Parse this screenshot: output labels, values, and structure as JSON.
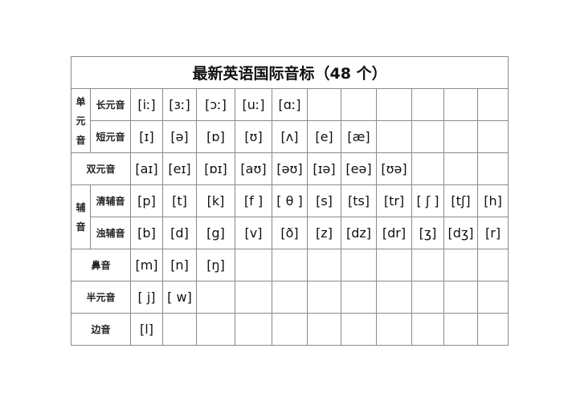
{
  "title": "最新英语国际音标（48 个）",
  "groups": {
    "monophthong": "单元音",
    "consonant": "辅音"
  },
  "rows": [
    {
      "label": "长元音",
      "group": "monophthong",
      "symbols": [
        "[iː]",
        "[ɜː]",
        "[ɔː]",
        "[uː]",
        "[ɑː]"
      ]
    },
    {
      "label": "短元音",
      "group": "monophthong",
      "symbols": [
        "[ɪ]",
        "[ə]",
        "[ɒ]",
        "[ʊ]",
        "[ʌ]",
        "[e]",
        "[æ]"
      ]
    },
    {
      "label": "双元音",
      "symbols": [
        "[aɪ]",
        "[eɪ]",
        "[ɒɪ]",
        "[aʊ]",
        "[əʊ]",
        "[ɪə]",
        "[eə]",
        "[ʊə]"
      ]
    },
    {
      "label": "清辅音",
      "group": "consonant",
      "symbols": [
        "[p]",
        "[t]",
        "[k]",
        "[f ]",
        "[ θ ]",
        "[s]",
        "[ts]",
        "[tr]",
        "[ ʃ ]",
        "[tʃ]",
        "[h]"
      ]
    },
    {
      "label": "浊辅音",
      "group": "consonant",
      "symbols": [
        "[b]",
        "[d]",
        "[g]",
        "[v]",
        "[ð]",
        "[z]",
        "[dz]",
        "[dr]",
        "[ʒ]",
        "[dʒ]",
        "[r]"
      ]
    },
    {
      "label": "鼻音",
      "symbols": [
        "[m]",
        "[n]",
        "[ŋ]"
      ]
    },
    {
      "label": "半元音",
      "symbols": [
        "[ j]",
        "[ w]"
      ]
    },
    {
      "label": "边音",
      "symbols": [
        "[l]"
      ]
    }
  ]
}
